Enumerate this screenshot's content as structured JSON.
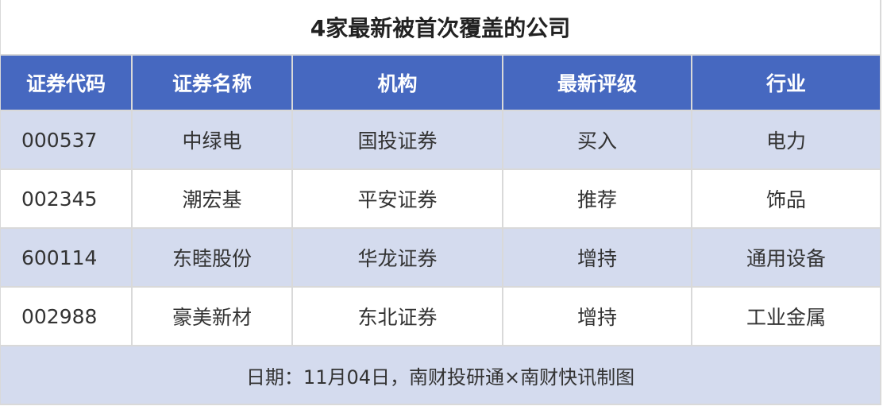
{
  "title": "4家最新被首次覆盖的公司",
  "columns": [
    "证券代码",
    "证券名称",
    "机构",
    "最新评级",
    "行业"
  ],
  "rows": [
    [
      "000537",
      "中绿电",
      "国投证券",
      "买入",
      "电力"
    ],
    [
      "002345",
      "潮宏基",
      "平安证券",
      "推荐",
      "饰品"
    ],
    [
      "600114",
      "东睦股份",
      "华龙证券",
      "增持",
      "通用设备"
    ],
    [
      "002988",
      "豪美新材",
      "东北证券",
      "增持",
      "工业金属"
    ]
  ],
  "footer": "日期：11月04日，南财投研通×南财快讯制图",
  "colors": {
    "header": "#4668c0",
    "stripe": "#d4dbee",
    "grid": "#d9d9d9"
  }
}
